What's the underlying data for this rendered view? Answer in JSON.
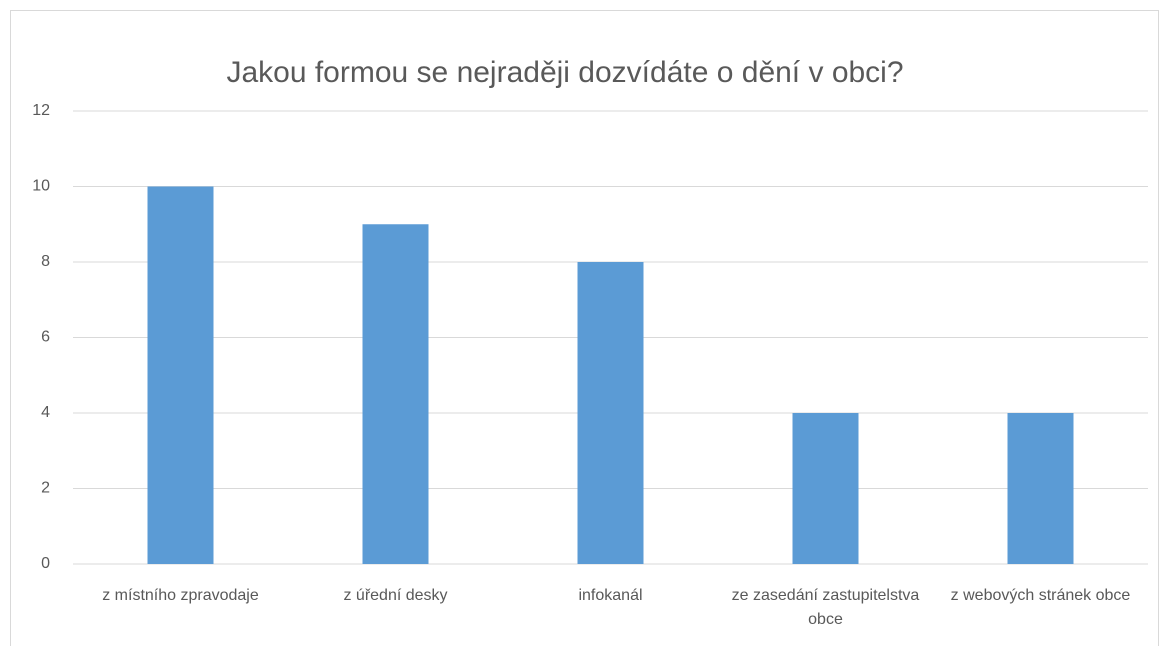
{
  "chart_data": {
    "type": "bar",
    "title": "Jakou formou se nejraději dozvídáte o dění v obci?",
    "categories": [
      "z místního zpravodaje",
      "z úřední desky",
      "infokanál",
      "ze zasedání zastupitelstva obce",
      "z webových stránek obce"
    ],
    "values": [
      10,
      9,
      8,
      4,
      4
    ],
    "color": "#5b9bd5",
    "ylim": [
      0,
      12
    ],
    "yticks": [
      0,
      2,
      4,
      6,
      8,
      10,
      12
    ],
    "grid": true
  }
}
